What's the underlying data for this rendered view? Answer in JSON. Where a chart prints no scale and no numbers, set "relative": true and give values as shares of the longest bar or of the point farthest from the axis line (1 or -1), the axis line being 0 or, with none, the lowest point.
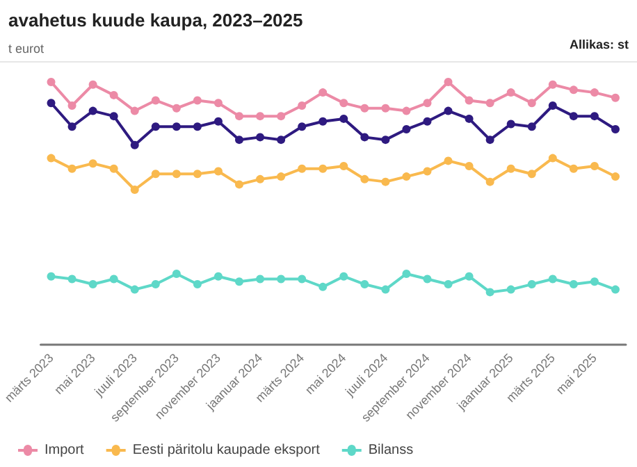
{
  "chart_data": {
    "type": "line",
    "title": "avahetus kuude kaupa, 2023–2025",
    "subtitle": "t eurot",
    "annotations": [
      "Allikas: st"
    ],
    "relative": true,
    "legend": "bottom left",
    "marker": "circle",
    "line_style": "solid",
    "categories": [
      "märts 2023",
      null,
      "mai 2023",
      null,
      "juuli 2023",
      null,
      "september 2023",
      null,
      "november 2023",
      null,
      "jaanuar 2024",
      null,
      "märts 2024",
      null,
      "mai 2024",
      null,
      "juuli 2024",
      null,
      "september 2024",
      null,
      "november 2024",
      null,
      "jaanuar 2025",
      null,
      "märts 2025",
      null,
      "mai 2025",
      null
    ],
    "series": [
      {
        "color": "#2e1a80",
        "values": [
          0.92,
          0.83,
          0.89,
          0.87,
          0.76,
          0.83,
          0.83,
          0.83,
          0.85,
          0.78,
          0.79,
          0.78,
          0.83,
          0.85,
          0.86,
          0.79,
          0.78,
          0.82,
          0.85,
          0.89,
          0.86,
          0.78,
          0.84,
          0.83,
          0.91,
          0.87,
          0.87,
          0.82
        ]
      },
      {
        "name": "Import",
        "color": "#ec8aa6",
        "values": [
          1.0,
          0.91,
          0.99,
          0.95,
          0.89,
          0.93,
          0.9,
          0.93,
          0.92,
          0.87,
          0.87,
          0.87,
          0.91,
          0.96,
          0.92,
          0.9,
          0.9,
          0.89,
          0.92,
          1.0,
          0.93,
          0.92,
          0.96,
          0.92,
          0.99,
          0.97,
          0.96,
          0.94
        ]
      },
      {
        "name": "Eesti päritolu kaupade eksport",
        "color": "#f9b94e",
        "values": [
          0.71,
          0.67,
          0.69,
          0.67,
          0.59,
          0.65,
          0.65,
          0.65,
          0.66,
          0.61,
          0.63,
          0.64,
          0.67,
          0.67,
          0.68,
          0.63,
          0.62,
          0.64,
          0.66,
          0.7,
          0.68,
          0.62,
          0.67,
          0.65,
          0.71,
          0.67,
          0.68,
          0.64
        ]
      },
      {
        "name": "Bilanss",
        "color": "#5ed8c8",
        "values": [
          0.26,
          0.25,
          0.23,
          0.25,
          0.21,
          0.23,
          0.27,
          0.23,
          0.26,
          0.24,
          0.25,
          0.25,
          0.25,
          0.22,
          0.26,
          0.23,
          0.21,
          0.27,
          0.25,
          0.23,
          0.26,
          0.2,
          0.21,
          0.23,
          0.25,
          0.23,
          0.24,
          0.21
        ]
      }
    ]
  }
}
